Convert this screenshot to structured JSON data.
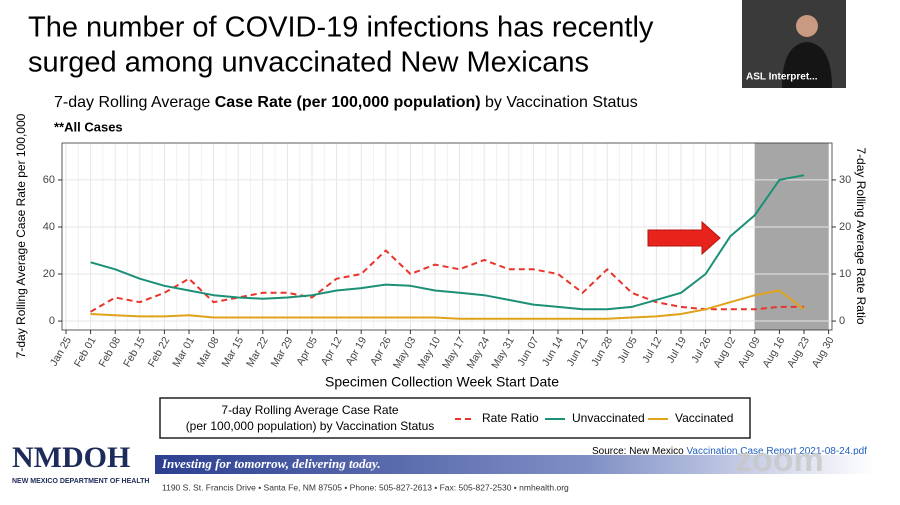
{
  "slide": {
    "title_lines": [
      "The number of COVID-19 infections has recently",
      "surged among unvaccinated New Mexicans"
    ],
    "source_prefix": "Source: New Mexico ",
    "source_link": "Vaccination Case Report 2021-08-24.pdf",
    "logo": "NMDOH",
    "logo_sub": "NEW MEXICO DEPARTMENT OF HEALTH",
    "banner": "Investing for tomorrow, delivering today.",
    "address": "1190 S. St. Francis Drive • Santa Fe, NM 87505 • Phone: 505-827-2613 • Fax: 505-827-2530 • nmhealth.org",
    "video_label": "ASL Interpret...",
    "watermark": "zoom"
  },
  "chart_data": {
    "type": "line",
    "title_parts": [
      "7-day Rolling Average ",
      "Case Rate (per 100,000 population)",
      " by Vaccination Status"
    ],
    "subtitle": "**All Cases",
    "x_label": "Specimen Collection Week Start Date",
    "y_label": "7-day Rolling Average Case Rate per 100,000",
    "y2_label": "7-day Rolling Average Rate Ratio",
    "legend_title": [
      "7-day Rolling Average Case Rate",
      "(per 100,000 population) by Vaccination Status"
    ],
    "categories": [
      "Jan 25",
      "Feb 01",
      "Feb 08",
      "Feb 15",
      "Feb 22",
      "Mar 01",
      "Mar 08",
      "Mar 15",
      "Mar 22",
      "Mar 29",
      "Apr 05",
      "Apr 12",
      "Apr 19",
      "Apr 26",
      "May 03",
      "May 10",
      "May 17",
      "May 24",
      "May 31",
      "Jun 07",
      "Jun 14",
      "Jun 21",
      "Jun 28",
      "Jul 05",
      "Jul 12",
      "Jul 19",
      "Jul 26",
      "Aug 02",
      "Aug 09",
      "Aug 16",
      "Aug 23",
      "Aug 30"
    ],
    "series": [
      {
        "name": "Rate Ratio",
        "color": "#e8352a",
        "dash": true,
        "axis": "y2",
        "values": [
          null,
          2,
          5,
          4,
          6,
          9,
          4,
          5,
          6,
          6,
          5,
          9,
          10,
          15,
          10,
          12,
          11,
          13,
          11,
          11,
          10,
          6,
          11,
          6,
          4,
          3,
          2.5,
          2.5,
          2.5,
          3,
          3,
          null
        ]
      },
      {
        "name": "Unvaccinated",
        "color": "#1b9077",
        "values": [
          null,
          25,
          22,
          18,
          15,
          13,
          11,
          10,
          9.5,
          10,
          11,
          13,
          14,
          15.5,
          15,
          13,
          12,
          11,
          9,
          7,
          6,
          5,
          5,
          6,
          9,
          12,
          20,
          36,
          45,
          60,
          62,
          null
        ]
      },
      {
        "name": "Vaccinated",
        "color": "#e0a21a",
        "values": [
          null,
          3,
          2.5,
          2,
          2,
          2.5,
          1.5,
          1.5,
          1.5,
          1.5,
          1.5,
          1.5,
          1.5,
          1.5,
          1.5,
          1.5,
          1,
          1,
          1,
          1,
          1,
          1,
          1,
          1.5,
          2,
          3,
          5,
          8,
          11,
          13,
          5,
          null
        ]
      }
    ],
    "ylim": [
      -3.8,
      75.7
    ],
    "yticks": [
      0,
      20,
      40,
      60
    ],
    "y2lim": [
      -1.9,
      37.85
    ],
    "y2ticks": [
      0,
      10,
      20,
      30
    ],
    "grid": true,
    "highlight": [
      "Aug 09",
      "Aug 30"
    ],
    "highlight_color": "#a6a6a6"
  }
}
